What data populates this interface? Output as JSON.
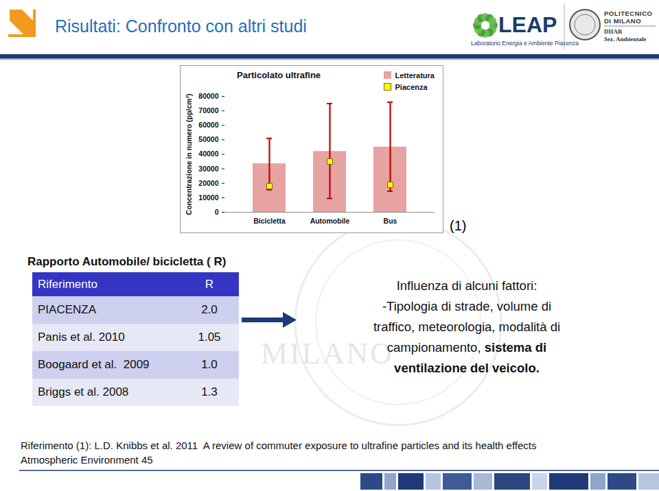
{
  "slide": {
    "title": "Risultati: Confronto con altri studi",
    "logos": {
      "leap": "LEAP",
      "leap_subtitle": "Laboratorio Energia e Ambiente Piacenza",
      "polimi": [
        "POLITECNICO",
        "DI MILANO"
      ],
      "department": [
        "DIIAR",
        "Sez. Ambientale"
      ]
    },
    "chart_ref": "(1)",
    "watermark": "MILANO",
    "table": {
      "title": "Rapporto Automobile/ bicicletta ( R)",
      "header": [
        "Riferimento",
        "R"
      ],
      "rows": [
        [
          "PIACENZA",
          "2.0"
        ],
        [
          "Panis et al. 2010",
          "1.05"
        ],
        [
          "Boogaard et al.  2009",
          "1.0"
        ],
        [
          "Briggs et al. 2008",
          "1.3"
        ]
      ]
    },
    "note": {
      "lines": [
        [
          {
            "text": "Influenza di alcuni fattori:"
          }
        ],
        [
          {
            "text": "-Tipologia di strade, volume di"
          }
        ],
        [
          {
            "text": "traffico, meteorologia, modalità di"
          }
        ],
        [
          {
            "text": "campionamento, "
          },
          {
            "text": "sistema di",
            "bold": true
          }
        ],
        [
          {
            "text": "ventilazione del veicolo.",
            "bold": true
          }
        ]
      ]
    },
    "footer": [
      "Riferimento (1): L.D. Knibbs et al. 2011  A review of commuter exposure to ultrafine particles and its health effects",
      "Atmospheric Environment 45"
    ]
  },
  "chart_data": {
    "type": "bar",
    "title": "Particolato ultrafine",
    "categories": [
      "Bicicletta",
      "Automobile",
      "Bus"
    ],
    "y_label": "Concentrazione in numero (pp/cm³)",
    "ylim": [
      0,
      80000
    ],
    "yticks": [
      0,
      10000,
      20000,
      30000,
      40000,
      50000,
      60000,
      70000,
      80000
    ],
    "grid": false,
    "legend": "top-right",
    "series": [
      {
        "name": "Letteratura",
        "type": "bar",
        "color": "#e6a3a1",
        "values": [
          33500,
          42000,
          45000
        ],
        "error_low": [
          15500,
          9500,
          14500
        ],
        "error_high": [
          51000,
          75000,
          76000
        ]
      },
      {
        "name": "Piacenza",
        "type": "scatter",
        "marker": "square",
        "color": "#ffff00",
        "values": [
          18000,
          35000,
          19000
        ]
      }
    ]
  }
}
